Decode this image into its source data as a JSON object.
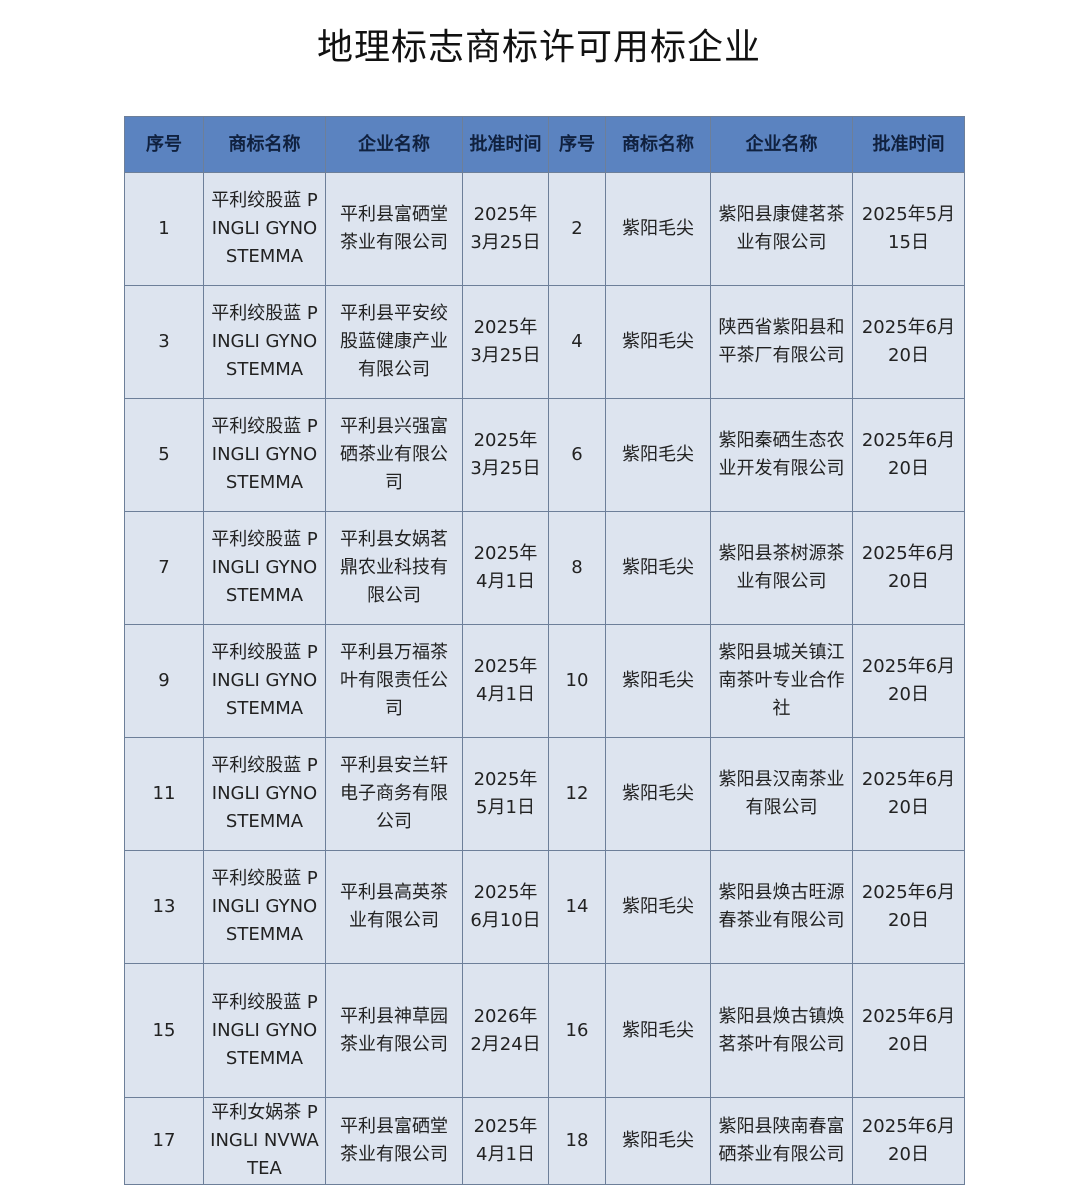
{
  "title": "地理标志商标许可用标企业",
  "headers": [
    "序号",
    "商标名称",
    "企业名称",
    "批准时间",
    "序号",
    "商标名称",
    "企业名称",
    "批准时间"
  ],
  "rows": [
    {
      "no1": "1",
      "brand1": "平利绞股蓝 PINGLI GYNOSTEMMA",
      "company1": "平利县富硒堂茶业有限公司",
      "date1": "2025年3月25日",
      "no2": "2",
      "brand2": "紫阳毛尖",
      "company2": "紫阳县康健茗茶业有限公司",
      "date2": "2025年5月15日"
    },
    {
      "no1": "3",
      "brand1": "平利绞股蓝 PINGLI GYNOSTEMMA",
      "company1": "平利县平安绞股蓝健康产业有限公司",
      "date1": "2025年3月25日",
      "no2": "4",
      "brand2": "紫阳毛尖",
      "company2": "陕西省紫阳县和平茶厂有限公司",
      "date2": "2025年6月20日"
    },
    {
      "no1": "5",
      "brand1": "平利绞股蓝 PINGLI GYNOSTEMMA",
      "company1": "平利县兴强富硒茶业有限公司",
      "date1": "2025年3月25日",
      "no2": "6",
      "brand2": "紫阳毛尖",
      "company2": "紫阳秦硒生态农业开发有限公司",
      "date2": "2025年6月20日"
    },
    {
      "no1": "7",
      "brand1": "平利绞股蓝 PINGLI GYNOSTEMMA",
      "company1": "平利县女娲茗鼎农业科技有限公司",
      "date1": "2025年4月1日",
      "no2": "8",
      "brand2": "紫阳毛尖",
      "company2": "紫阳县茶树源茶业有限公司",
      "date2": "2025年6月20日"
    },
    {
      "no1": "9",
      "brand1": "平利绞股蓝 PINGLI GYNOSTEMMA",
      "company1": "平利县万福茶叶有限责任公司",
      "date1": "2025年4月1日",
      "no2": "10",
      "brand2": "紫阳毛尖",
      "company2": "紫阳县城关镇江南茶叶专业合作社",
      "date2": "2025年6月20日"
    },
    {
      "no1": "11",
      "brand1": "平利绞股蓝 PINGLI GYNOSTEMMA",
      "company1": "平利县安兰轩电子商务有限公司",
      "date1": "2025年5月1日",
      "no2": "12",
      "brand2": "紫阳毛尖",
      "company2": "紫阳县汉南茶业有限公司",
      "date2": "2025年6月20日"
    },
    {
      "no1": "13",
      "brand1": "平利绞股蓝 PINGLI GYNOSTEMMA",
      "company1": "平利县高英茶业有限公司",
      "date1": "2025年6月10日",
      "no2": "14",
      "brand2": "紫阳毛尖",
      "company2": "紫阳县焕古旺源春茶业有限公司",
      "date2": "2025年6月20日"
    },
    {
      "no1": "15",
      "brand1": "平利绞股蓝 PINGLI GYNOSTEMMA",
      "company1": "平利县神草园茶业有限公司",
      "date1": "2026年2月24日",
      "no2": "16",
      "brand2": "紫阳毛尖",
      "company2": "紫阳县焕古镇焕茗茶叶有限公司",
      "date2": "2025年6月20日"
    },
    {
      "no1": "17",
      "brand1": "平利女娲茶 PINGLI NVWA TEA",
      "company1": "平利县富硒堂茶业有限公司",
      "date1": "2025年4月1日",
      "no2": "18",
      "brand2": "紫阳毛尖",
      "company2": "紫阳县陕南春富硒茶业有限公司",
      "date2": "2025年6月20日"
    }
  ],
  "colors": {
    "header_bg": "#5b83c0",
    "cell_bg": "#dde4ef"
  }
}
